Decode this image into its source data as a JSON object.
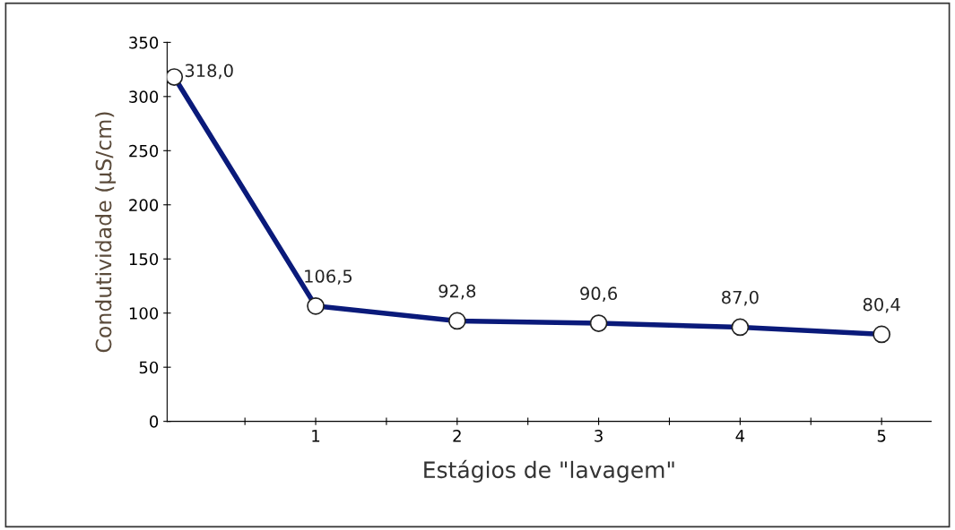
{
  "chart_data": {
    "type": "line",
    "xlabel": "Estágios de \"lavagem\"",
    "ylabel": "Condutividade (µS/cm)",
    "x": [
      0,
      1,
      2,
      3,
      4,
      5
    ],
    "series": [
      {
        "color": "#0a1a7a",
        "values": [
          318.0,
          106.5,
          92.8,
          90.6,
          87.0,
          80.4
        ],
        "value_labels": [
          "318,0",
          "106,5",
          "92,8",
          "90,6",
          "87,0",
          "80,4"
        ]
      }
    ],
    "xlim": [
      -0.05,
      5.35
    ],
    "ylim": [
      0,
      350
    ],
    "xticks": [
      {
        "value": 0.5,
        "label": null
      },
      1,
      {
        "value": 1.5,
        "label": null
      },
      2,
      {
        "value": 2.5,
        "label": null
      },
      3,
      {
        "value": 3.5,
        "label": null
      },
      4,
      {
        "value": 4.5,
        "label": null
      },
      5
    ],
    "yticks": [
      0,
      50,
      100,
      150,
      200,
      250,
      300,
      350
    ],
    "grid": false,
    "marker": "circle",
    "line_style": "solid"
  }
}
